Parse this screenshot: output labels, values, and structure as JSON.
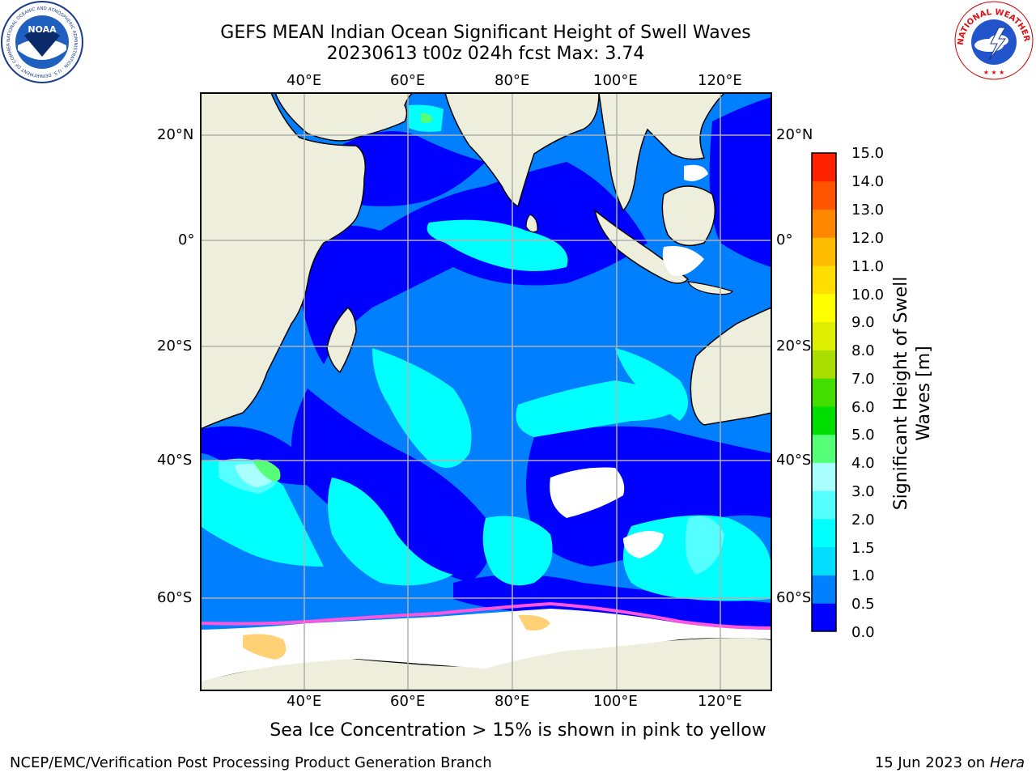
{
  "title": {
    "line1": "GEFS MEAN Indian Ocean Significant Height of Swell Waves",
    "line2": "20230613 t00z 024h fcst   Max: 3.74"
  },
  "map": {
    "lon_labels": [
      "40°E",
      "60°E",
      "80°E",
      "100°E",
      "120°E"
    ],
    "lat_labels": [
      "20°N",
      "0°",
      "20°S",
      "40°S",
      "60°S"
    ],
    "colors": {
      "land": "#eeeedd",
      "grid": "#b0b0b0",
      "ice": "#ffffff"
    }
  },
  "colorbar": {
    "title_line1": "Significant Height of Swell",
    "title_line2": "Waves [m]",
    "labels": [
      "15.0",
      "14.0",
      "13.0",
      "12.0",
      "11.0",
      "10.0",
      "9.0",
      "8.0",
      "7.0",
      "6.0",
      "5.0",
      "4.0",
      "3.0",
      "2.0",
      "1.5",
      "1.0",
      "0.5",
      "0.0"
    ],
    "colors": [
      "#0000ff",
      "#0080ff",
      "#00ddff",
      "#00ffff",
      "#55ffff",
      "#aaffff",
      "#55ff77",
      "#00dd00",
      "#44dd00",
      "#aadd00",
      "#ddee00",
      "#ffff00",
      "#ffdd00",
      "#ffbb00",
      "#ff8800",
      "#ff5500",
      "#ff2200"
    ]
  },
  "caption": "Sea Ice Concentration > 15% is shown in pink to yellow",
  "footer": {
    "left": "NCEP/EMC/Verification Post Processing Product Generation Branch",
    "date": "15 Jun 2023 on",
    "machine": "Hera"
  },
  "logos": {
    "noaa_text": "NOAA",
    "noaa_ring": "NATIONAL OCEANIC AND ATMOSPHERIC ADMINISTRATION · U.S. DEPARTMENT OF COMMERCE",
    "nws_ring": "NATIONAL WEATHER SERVICE"
  }
}
